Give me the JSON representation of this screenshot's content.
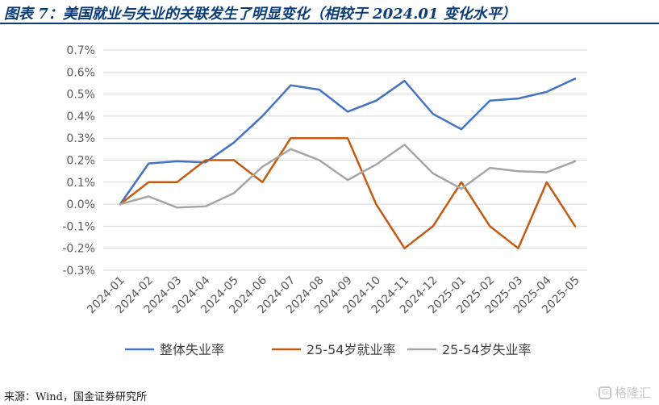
{
  "title": "图表 7：美国就业与失业的关联发生了明显变化（相较于 2024.01 变化水平）",
  "source": "来源：Wind，国金证券研究所",
  "watermark": "格隆汇",
  "chart_data": {
    "type": "line",
    "x": [
      "2024-01",
      "2024-02",
      "2024-03",
      "2024-04",
      "2024-05",
      "2024-06",
      "2024-07",
      "2024-08",
      "2024-09",
      "2024-10",
      "2024-11",
      "2024-12",
      "2025-01",
      "2025-02",
      "2025-03",
      "2025-04",
      "2025-05"
    ],
    "ylim": [
      -0.3,
      0.7
    ],
    "yticks": [
      "0.7%",
      "0.6%",
      "0.5%",
      "0.4%",
      "0.3%",
      "0.2%",
      "0.1%",
      "0.0%",
      "-0.1%",
      "-0.2%",
      "-0.3%"
    ],
    "grid": true,
    "legend_position": "bottom",
    "series": [
      {
        "name": "整体失业率",
        "color": "#4472c4",
        "values": [
          0.0,
          0.185,
          0.195,
          0.19,
          0.28,
          0.4,
          0.54,
          0.52,
          0.42,
          0.47,
          0.56,
          0.41,
          0.34,
          0.47,
          0.48,
          0.51,
          0.57
        ]
      },
      {
        "name": "25-54岁就业率",
        "color": "#c55a11",
        "values": [
          0.0,
          0.1,
          0.1,
          0.2,
          0.2,
          0.1,
          0.3,
          0.3,
          0.3,
          0.0,
          -0.2,
          -0.1,
          0.1,
          -0.1,
          -0.2,
          0.1,
          -0.1
        ]
      },
      {
        "name": "25-54岁失业率",
        "color": "#a5a5a5",
        "values": [
          0.0,
          0.035,
          -0.015,
          -0.01,
          0.05,
          0.17,
          0.25,
          0.2,
          0.11,
          0.18,
          0.27,
          0.14,
          0.07,
          0.165,
          0.15,
          0.145,
          0.195
        ]
      }
    ]
  }
}
